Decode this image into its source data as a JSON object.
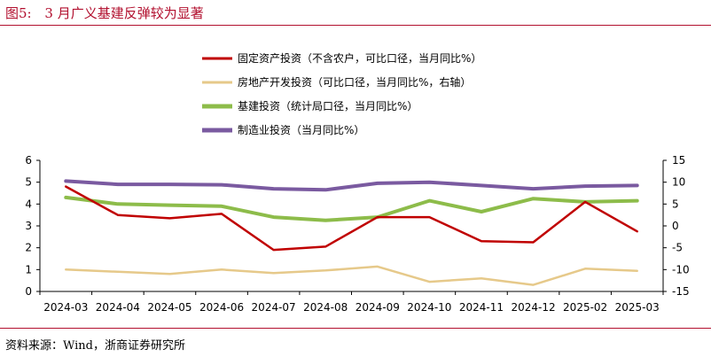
{
  "figure": {
    "label": "图5:",
    "title": "3 月广义基建反弹较为显著",
    "source": "资料来源：Wind，浙商证券研究所"
  },
  "chart_data": {
    "type": "line",
    "categories": [
      "2024-03",
      "2024-04",
      "2024-05",
      "2024-06",
      "2024-07",
      "2024-08",
      "2024-09",
      "2024-10",
      "2024-11",
      "2024-12",
      "2025-02",
      "2025-03"
    ],
    "left_axis": {
      "ylim": [
        0,
        6
      ],
      "ticks": [
        0,
        1,
        2,
        3,
        4,
        5,
        6
      ]
    },
    "right_axis": {
      "ylim": [
        -15,
        15
      ],
      "ticks": [
        -15,
        -10,
        -5,
        0,
        5,
        10,
        15
      ]
    },
    "grid": false,
    "legend_position": "top-center",
    "series": [
      {
        "name": "固定资产投资（不含农户，可比口径，当月同比%）",
        "axis": "left",
        "color": "#c00000",
        "values": [
          4.8,
          3.5,
          3.35,
          3.55,
          1.9,
          2.05,
          3.4,
          3.4,
          2.3,
          2.25,
          4.1,
          2.75
        ]
      },
      {
        "name": "房地产开发投资（可比口径，当月同比%，右轴）",
        "axis": "right",
        "color": "#e6c98a",
        "values": [
          -10.0,
          -10.5,
          -11.0,
          -10.0,
          -10.8,
          -10.2,
          -9.3,
          -12.8,
          -12.0,
          -13.5,
          -9.8,
          -10.3
        ]
      },
      {
        "name": "基建投资（统计局口径，当月同比%）",
        "axis": "left",
        "color": "#8dbc4a",
        "values": [
          4.3,
          4.0,
          3.95,
          3.9,
          3.4,
          3.25,
          3.4,
          4.15,
          3.65,
          4.25,
          4.1,
          4.15
        ]
      },
      {
        "name": "制造业投资（当月同比%）",
        "axis": "left",
        "color": "#7a5aa0",
        "values": [
          5.05,
          4.9,
          4.9,
          4.88,
          4.7,
          4.65,
          4.95,
          5.0,
          4.85,
          4.7,
          4.82,
          4.85
        ]
      }
    ]
  }
}
